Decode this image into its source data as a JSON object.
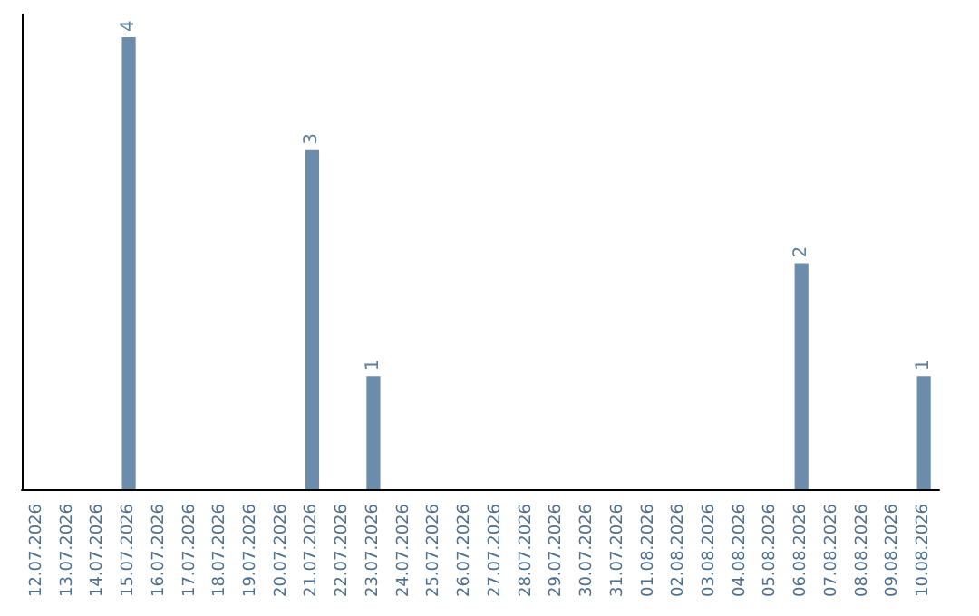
{
  "chart_data": {
    "type": "bar",
    "categories": [
      "12.07.2026",
      "13.07.2026",
      "14.07.2026",
      "15.07.2026",
      "16.07.2026",
      "17.07.2026",
      "18.07.2026",
      "19.07.2026",
      "20.07.2026",
      "21.07.2026",
      "22.07.2026",
      "23.07.2026",
      "24.07.2026",
      "25.07.2026",
      "26.07.2026",
      "27.07.2026",
      "28.07.2026",
      "29.07.2026",
      "30.07.2026",
      "31.07.2026",
      "01.08.2026",
      "02.08.2026",
      "03.08.2026",
      "04.08.2026",
      "05.08.2026",
      "06.08.2026",
      "07.08.2026",
      "08.08.2026",
      "09.08.2026",
      "10.08.2026"
    ],
    "values": [
      0,
      0,
      0,
      4,
      0,
      0,
      0,
      0,
      0,
      3,
      0,
      1,
      0,
      0,
      0,
      0,
      0,
      0,
      0,
      0,
      0,
      0,
      0,
      0,
      0,
      2,
      0,
      0,
      0,
      1
    ],
    "value_labels": [
      null,
      null,
      null,
      "4",
      null,
      null,
      null,
      null,
      null,
      "3",
      null,
      "1",
      null,
      null,
      null,
      null,
      null,
      null,
      null,
      null,
      null,
      null,
      null,
      null,
      null,
      "2",
      null,
      null,
      null,
      "1"
    ],
    "color": "#6b8caa",
    "tick_labels": "x",
    "grid": false
  }
}
